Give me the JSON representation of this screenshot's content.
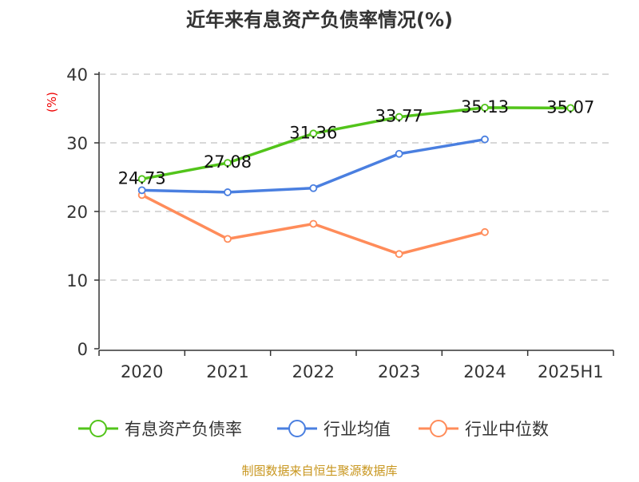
{
  "chart_data": {
    "type": "line",
    "title": "近年来有息资产负债率情况(%)",
    "ylabel": "(%)",
    "categories": [
      "2020",
      "2021",
      "2022",
      "2023",
      "2024",
      "2025H1"
    ],
    "ylim": [
      0,
      40
    ],
    "yticks": [
      "0",
      "10",
      "20",
      "30",
      "40"
    ],
    "grid": true,
    "legend_position": "bottom",
    "series": [
      {
        "name": "有息资产负债率",
        "color": "#52c41a",
        "values": [
          24.73,
          27.08,
          31.36,
          33.77,
          35.13,
          35.07
        ],
        "labels": [
          "24.73",
          "27.08",
          "31.36",
          "33.77",
          "35.13",
          "35.07"
        ]
      },
      {
        "name": "行业均值",
        "color": "#4a7fe0",
        "values": [
          23.1,
          22.8,
          23.4,
          28.4,
          30.5,
          null
        ]
      },
      {
        "name": "行业中位数",
        "color": "#ff8c5a",
        "values": [
          22.4,
          16.0,
          18.2,
          13.8,
          17.0,
          null
        ]
      }
    ]
  },
  "source": "制图数据来自恒生聚源数据库"
}
